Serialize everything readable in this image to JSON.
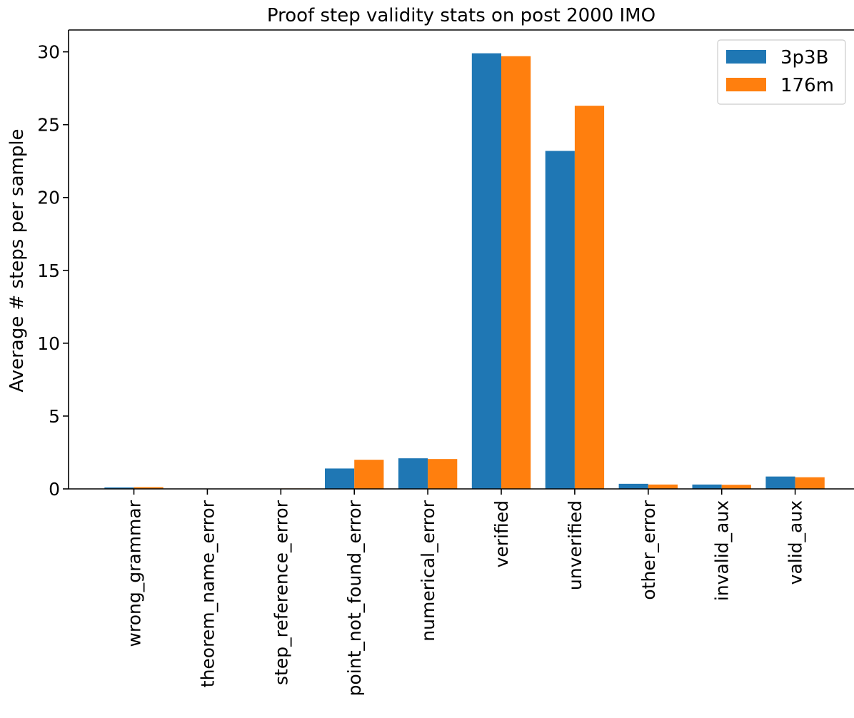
{
  "chart_data": {
    "type": "bar",
    "title": "Proof step validity stats on post 2000 IMO",
    "xlabel": "",
    "ylabel": "Average # steps per sample",
    "categories": [
      "wrong_grammar",
      "theorem_name_error",
      "step_reference_error",
      "point_not_found_error",
      "numerical_error",
      "verified",
      "unverified",
      "other_error",
      "invalid_aux",
      "valid_aux"
    ],
    "series": [
      {
        "name": "3p3B",
        "color": "#1f77b4",
        "values": [
          0.1,
          0.0,
          0.0,
          1.4,
          2.1,
          29.9,
          23.2,
          0.35,
          0.3,
          0.85
        ]
      },
      {
        "name": "176m",
        "color": "#ff7f0e",
        "values": [
          0.12,
          0.0,
          0.03,
          2.0,
          2.05,
          29.7,
          26.3,
          0.3,
          0.28,
          0.8
        ]
      }
    ],
    "ylim": [
      0,
      31.5
    ],
    "yticks": [
      0,
      5,
      10,
      15,
      20,
      25,
      30
    ],
    "legend_position": "top-right",
    "grid": false
  }
}
